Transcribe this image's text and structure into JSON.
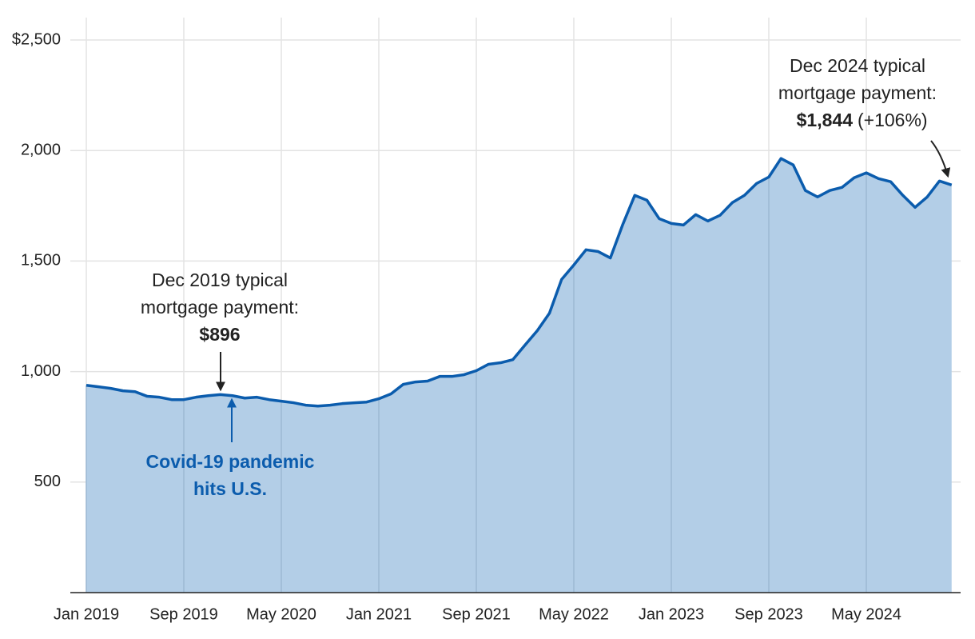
{
  "chart_data": {
    "type": "area",
    "categories": [
      "Jan 2019",
      null,
      null,
      null,
      null,
      null,
      null,
      null,
      "Sep 2019",
      null,
      null,
      null,
      null,
      null,
      null,
      null,
      "May 2020",
      null,
      null,
      null,
      null,
      null,
      null,
      null,
      "Jan 2021",
      null,
      null,
      null,
      null,
      null,
      null,
      null,
      "Sep 2021",
      null,
      null,
      null,
      null,
      null,
      null,
      null,
      "May 2022",
      null,
      null,
      null,
      null,
      null,
      null,
      null,
      "Jan 2023",
      null,
      null,
      null,
      null,
      null,
      null,
      null,
      "Sep 2023",
      null,
      null,
      null,
      null,
      null,
      null,
      null,
      "May 2024",
      null,
      null,
      null,
      null,
      null,
      null,
      null
    ],
    "values": [
      938,
      931,
      924,
      913,
      909,
      888,
      884,
      873,
      873,
      884,
      891,
      896,
      891,
      880,
      884,
      873,
      866,
      859,
      848,
      844,
      848,
      855,
      859,
      862,
      877,
      899,
      942,
      953,
      957,
      978,
      978,
      986,
      1004,
      1033,
      1040,
      1054,
      1120,
      1185,
      1264,
      1417,
      1482,
      1551,
      1543,
      1514,
      1663,
      1797,
      1775,
      1692,
      1670,
      1663,
      1710,
      1681,
      1707,
      1764,
      1797,
      1851,
      1880,
      1964,
      1935,
      1819,
      1790,
      1819,
      1833,
      1877,
      1899,
      1873,
      1859,
      1797,
      1743,
      1790,
      1862,
      1844
    ],
    "color": "#0b5cad",
    "area_color": "#b3cee7",
    "ylim": [
      0,
      2500
    ],
    "yticks": [
      500,
      {
        "value": 1000,
        "label": "1,000"
      },
      {
        "value": 1500,
        "label": "1,500"
      },
      {
        "value": 2000,
        "label": "2,000"
      },
      {
        "value": 2500,
        "label": "$2,500"
      }
    ],
    "grid": true,
    "annotations": [
      {
        "lines": [
          "Dec 2019 typical",
          "mortgage payment:"
        ],
        "value_text": "$896"
      },
      {
        "lines": [
          "Covid-19 pandemic",
          "hits U.S."
        ]
      },
      {
        "lines": [
          "Dec 2024 typical",
          "mortgage payment:"
        ],
        "value_text": "$1,844",
        "change_text": "(+106%)"
      }
    ]
  }
}
